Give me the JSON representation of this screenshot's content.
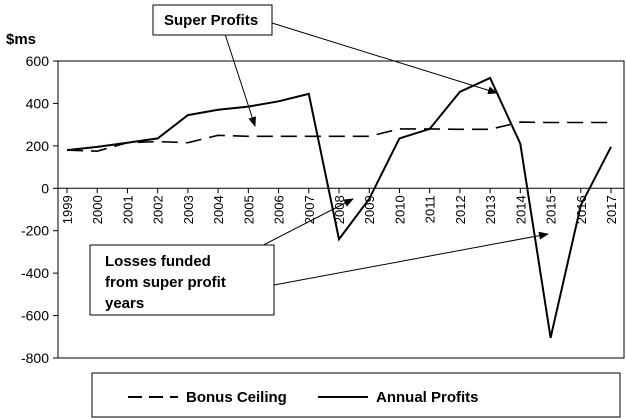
{
  "chart_data": {
    "type": "line",
    "ylabel": "$ms",
    "ylim": [
      -800,
      600
    ],
    "yticks": [
      600,
      400,
      200,
      0,
      -200,
      -400,
      -600,
      -800
    ],
    "x": [
      "1999",
      "2000",
      "2001",
      "2002",
      "2003",
      "2004",
      "2005",
      "2006",
      "2007",
      "2008",
      "2009",
      "2010",
      "2011",
      "2012",
      "2013",
      "2014",
      "2015",
      "2016",
      "2017"
    ],
    "series": [
      {
        "name": "Bonus Ceiling",
        "style": "dashed",
        "values": [
          180,
          175,
          215,
          220,
          215,
          250,
          245,
          245,
          245,
          245,
          245,
          280,
          280,
          278,
          278,
          312,
          310,
          310,
          310
        ]
      },
      {
        "name": "Annual Profits",
        "style": "solid",
        "values": [
          180,
          195,
          215,
          235,
          345,
          370,
          385,
          410,
          445,
          -240,
          -50,
          235,
          280,
          455,
          520,
          210,
          -705,
          -80,
          195
        ]
      }
    ],
    "annotations": [
      {
        "id": "super",
        "lines": [
          "Super Profits"
        ]
      },
      {
        "id": "losses",
        "lines": [
          "Losses funded",
          "from super profit",
          "years"
        ]
      }
    ],
    "grid": false,
    "legend_position": "bottom"
  },
  "colors": {
    "line": "#000000",
    "plot_bg": "#ffffff",
    "frame": "#000000"
  }
}
